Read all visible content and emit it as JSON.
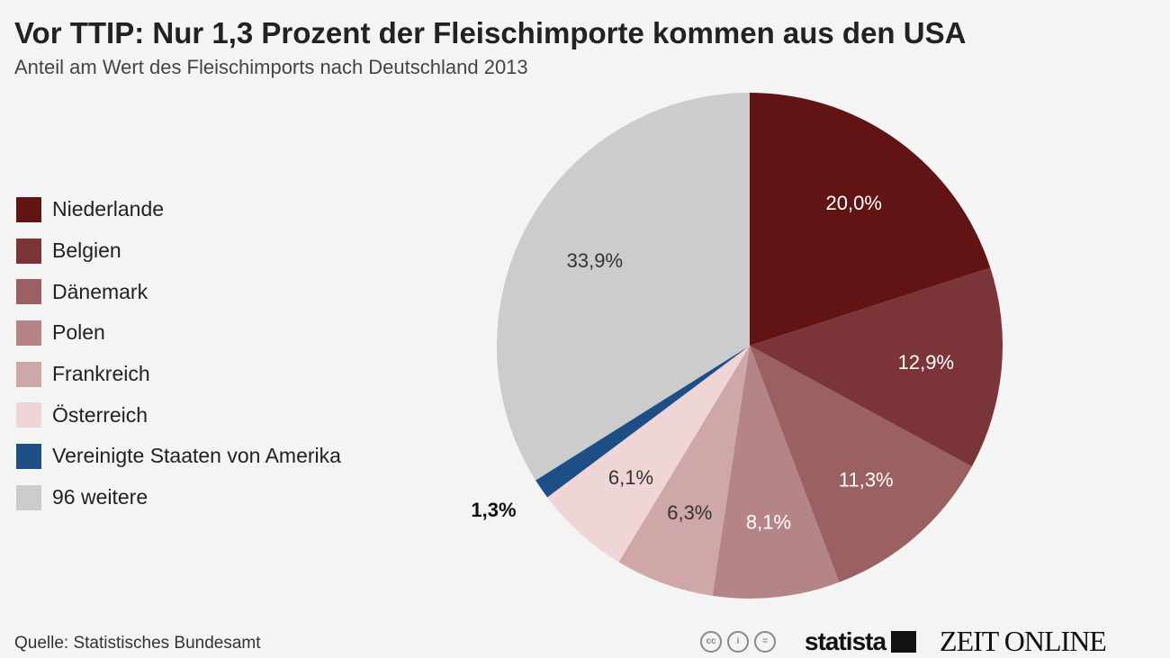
{
  "chart_data": {
    "type": "pie",
    "title": "Vor TTIP: Nur 1,3 Prozent der Fleischimporte kommen aus den USA",
    "subtitle": "Anteil am Wert des Fleischimports nach Deutschland 2013",
    "legend_position": "left",
    "slices": [
      {
        "name": "Niederlande",
        "value": 20.0,
        "label": "20,0%",
        "color": "#621414"
      },
      {
        "name": "Belgien",
        "value": 12.9,
        "label": "12,9%",
        "color": "#7b3538"
      },
      {
        "name": "Dänemark",
        "value": 11.3,
        "label": "11,3%",
        "color": "#9a6062"
      },
      {
        "name": "Polen",
        "value": 8.1,
        "label": "8,1%",
        "color": "#b48486"
      },
      {
        "name": "Frankreich",
        "value": 6.3,
        "label": "6,3%",
        "color": "#cfa7a8"
      },
      {
        "name": "Österreich",
        "value": 6.1,
        "label": "6,1%",
        "color": "#efd5d6"
      },
      {
        "name": "Vereinigte Staaten von Amerika",
        "value": 1.3,
        "label": "1,3%",
        "color": "#1d4f86"
      },
      {
        "name": "96 weitere",
        "value": 33.9,
        "label": "33,9%",
        "color": "#cccccc"
      }
    ]
  },
  "footer": {
    "source": "Quelle: Statistisches Bundesamt",
    "statista": "statista",
    "zeit": "ZEIT ONLINE",
    "cc_icons": [
      "cc-icon",
      "by-icon",
      "nd-icon"
    ]
  }
}
